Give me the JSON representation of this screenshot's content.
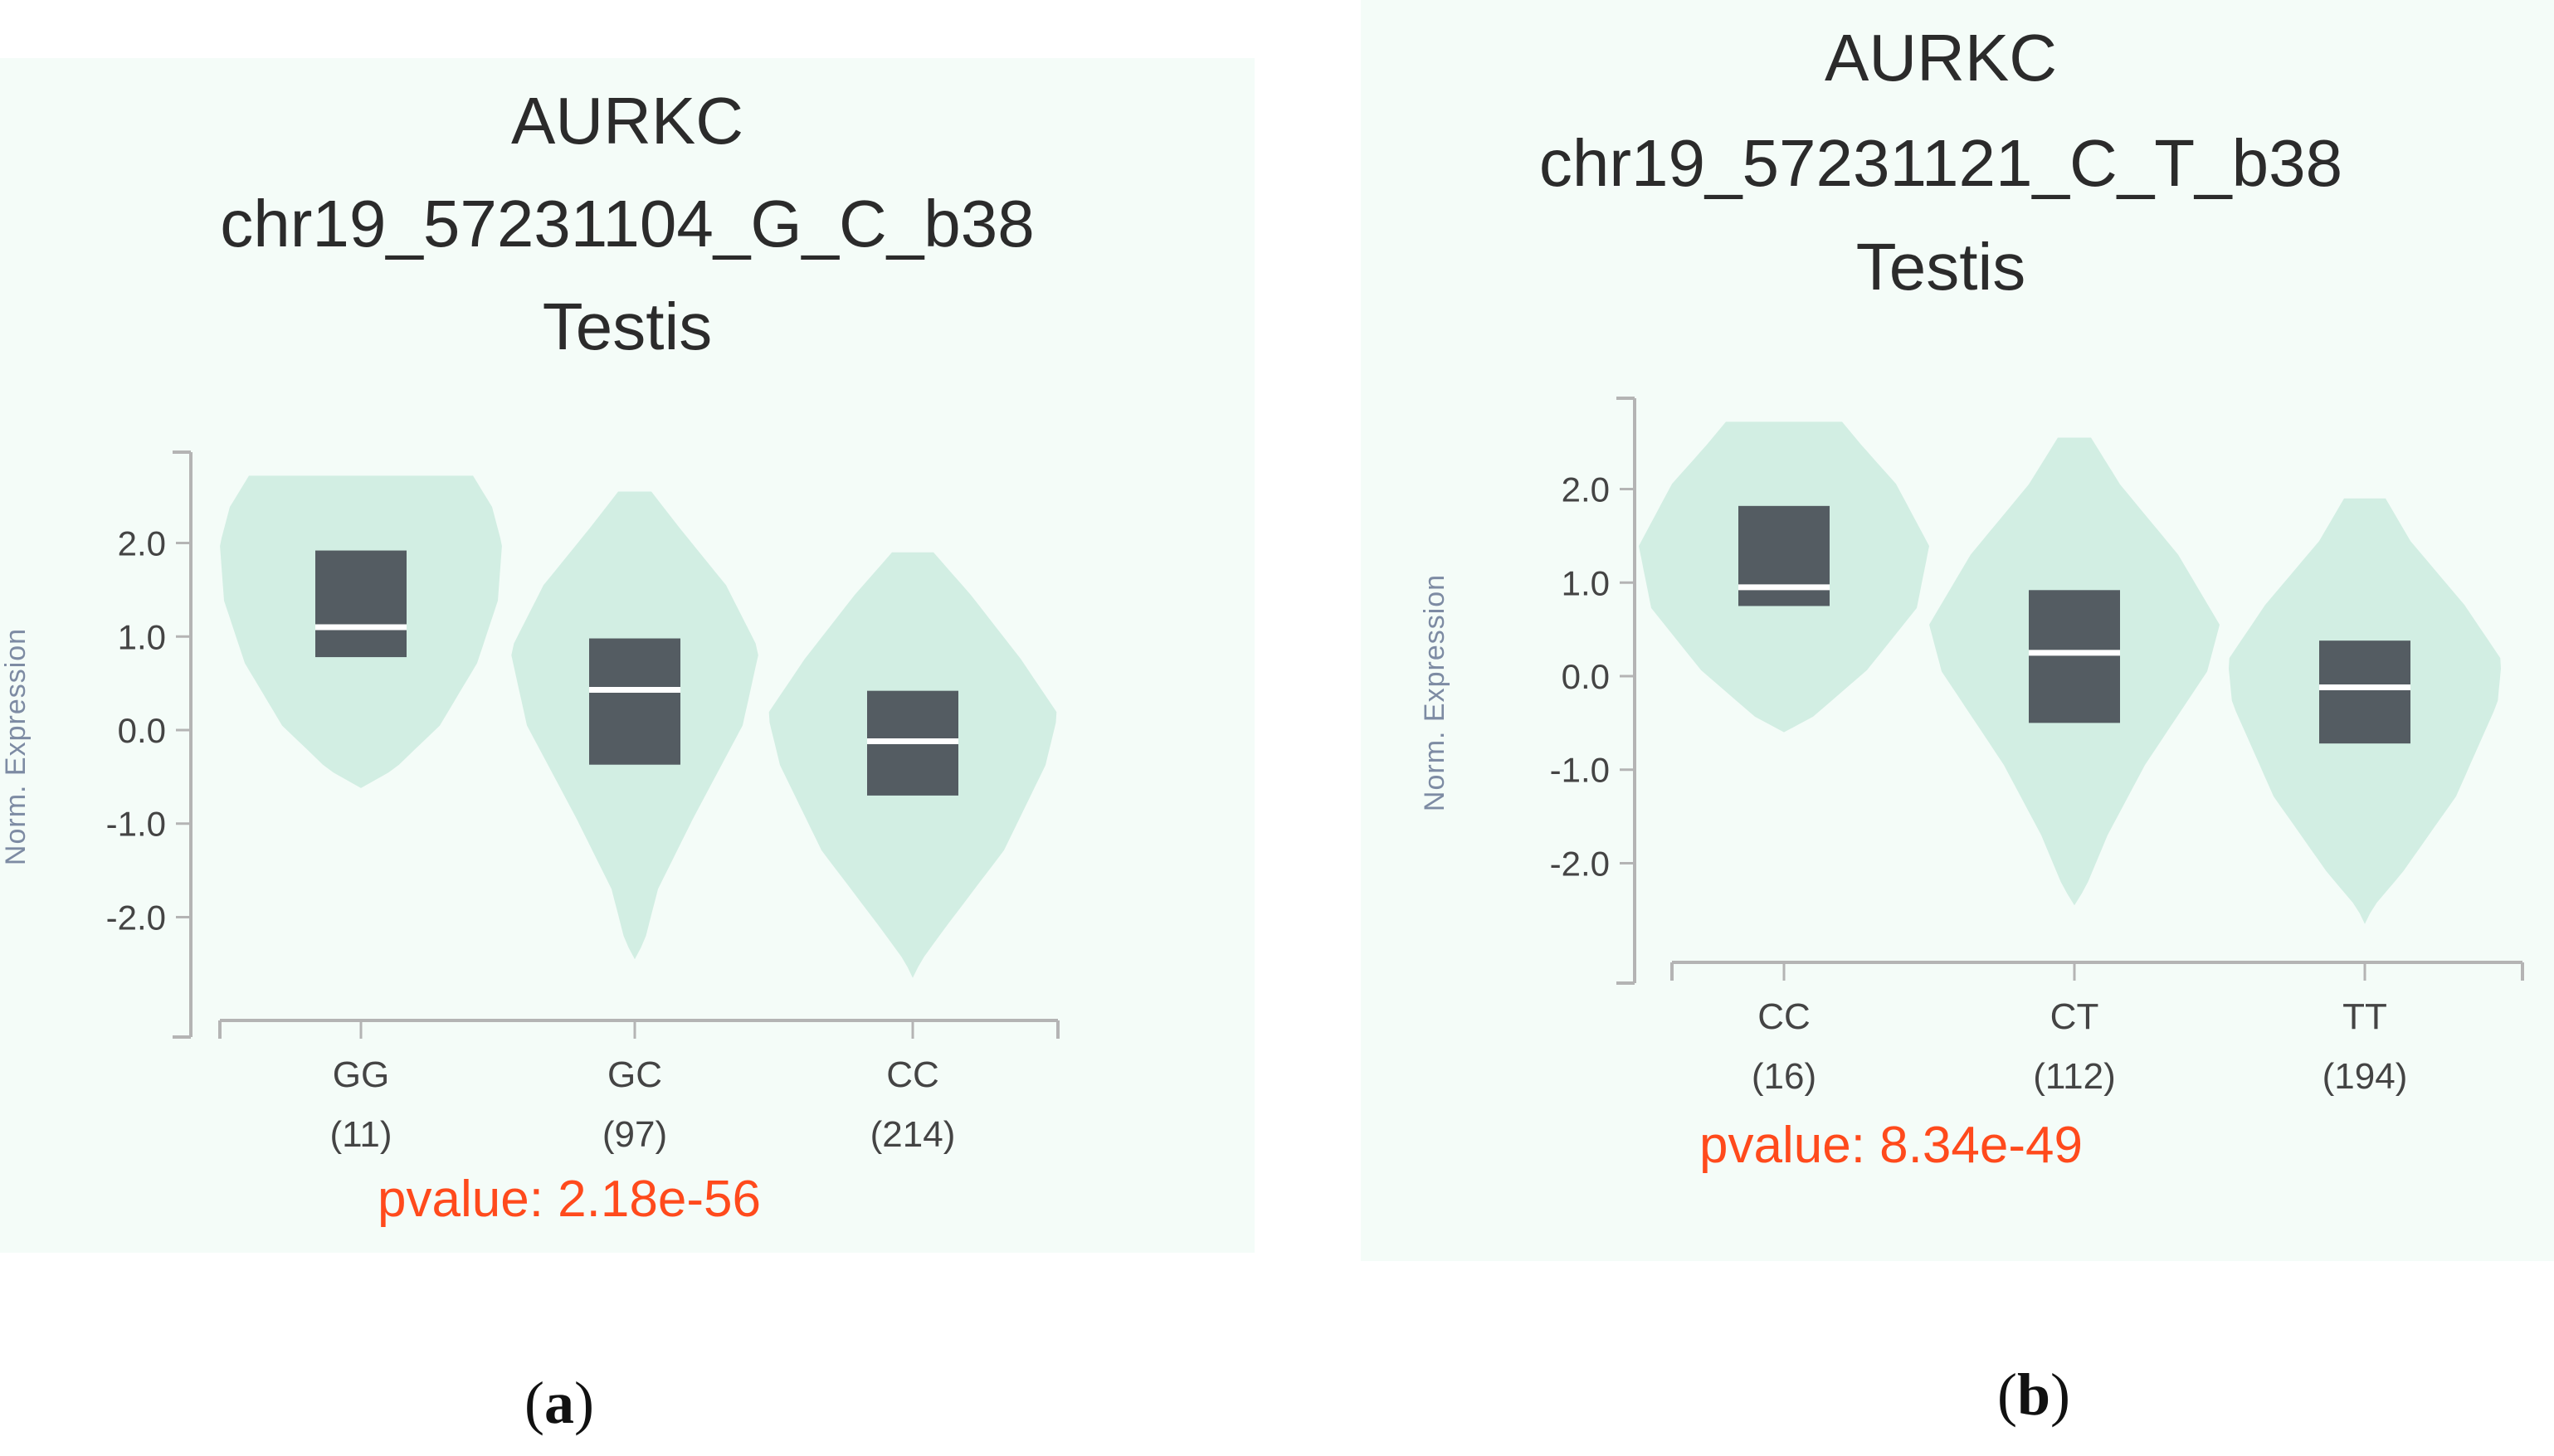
{
  "chart_data": [
    {
      "type": "violin",
      "panel_label": "a",
      "title_lines": [
        "AURKC",
        "chr19_57231104_G_C_b38",
        "Testis"
      ],
      "ylabel": "Norm. Expression",
      "ylim": [
        -2.75,
        2.75
      ],
      "yticks": [
        "2.0",
        "1.0",
        "0.0",
        "-1.0",
        "-2.0"
      ],
      "ytick_values": [
        2,
        1,
        0,
        -1,
        -2
      ],
      "categories": [
        "GG",
        "GC",
        "CC"
      ],
      "counts": [
        "(11)",
        "(97)",
        "(214)"
      ],
      "violins": [
        {
          "min": -0.62,
          "max": 2.72,
          "q1": 0.78,
          "median": 1.1,
          "q3": 1.92
        },
        {
          "min": -2.45,
          "max": 2.55,
          "q1": -0.37,
          "median": 0.43,
          "q3": 0.98
        },
        {
          "min": -2.65,
          "max": 1.9,
          "q1": -0.7,
          "median": -0.12,
          "q3": 0.42
        }
      ],
      "pvalue": "pvalue: 2.18e-56"
    },
    {
      "type": "violin",
      "panel_label": "b",
      "title_lines": [
        "AURKC",
        "chr19_57231121_C_T_b38",
        "Testis"
      ],
      "ylabel": "Norm. Expression",
      "ylim": [
        -2.75,
        2.75
      ],
      "yticks": [
        "2.0",
        "1.0",
        "0.0",
        "-1.0",
        "-2.0"
      ],
      "ytick_values": [
        2,
        1,
        0,
        -1,
        -2
      ],
      "categories": [
        "CC",
        "CT",
        "TT"
      ],
      "counts": [
        "(16)",
        "(112)",
        "(194)"
      ],
      "violins": [
        {
          "min": -0.6,
          "max": 2.72,
          "q1": 0.75,
          "median": 0.95,
          "q3": 1.82
        },
        {
          "min": -2.45,
          "max": 2.55,
          "q1": -0.5,
          "median": 0.25,
          "q3": 0.92
        },
        {
          "min": -2.65,
          "max": 1.9,
          "q1": -0.72,
          "median": -0.12,
          "q3": 0.38
        }
      ],
      "pvalue": "pvalue: 8.34e-49"
    }
  ],
  "colors": {
    "violin_fill": "#d2eee3",
    "box_fill": "#545c62",
    "median_line": "#ffffff",
    "axis": "#b4b4b4",
    "tick_text": "#444444",
    "ylabel_text": "#7d8ba3",
    "pvalue_text": "#ff4a1c"
  }
}
